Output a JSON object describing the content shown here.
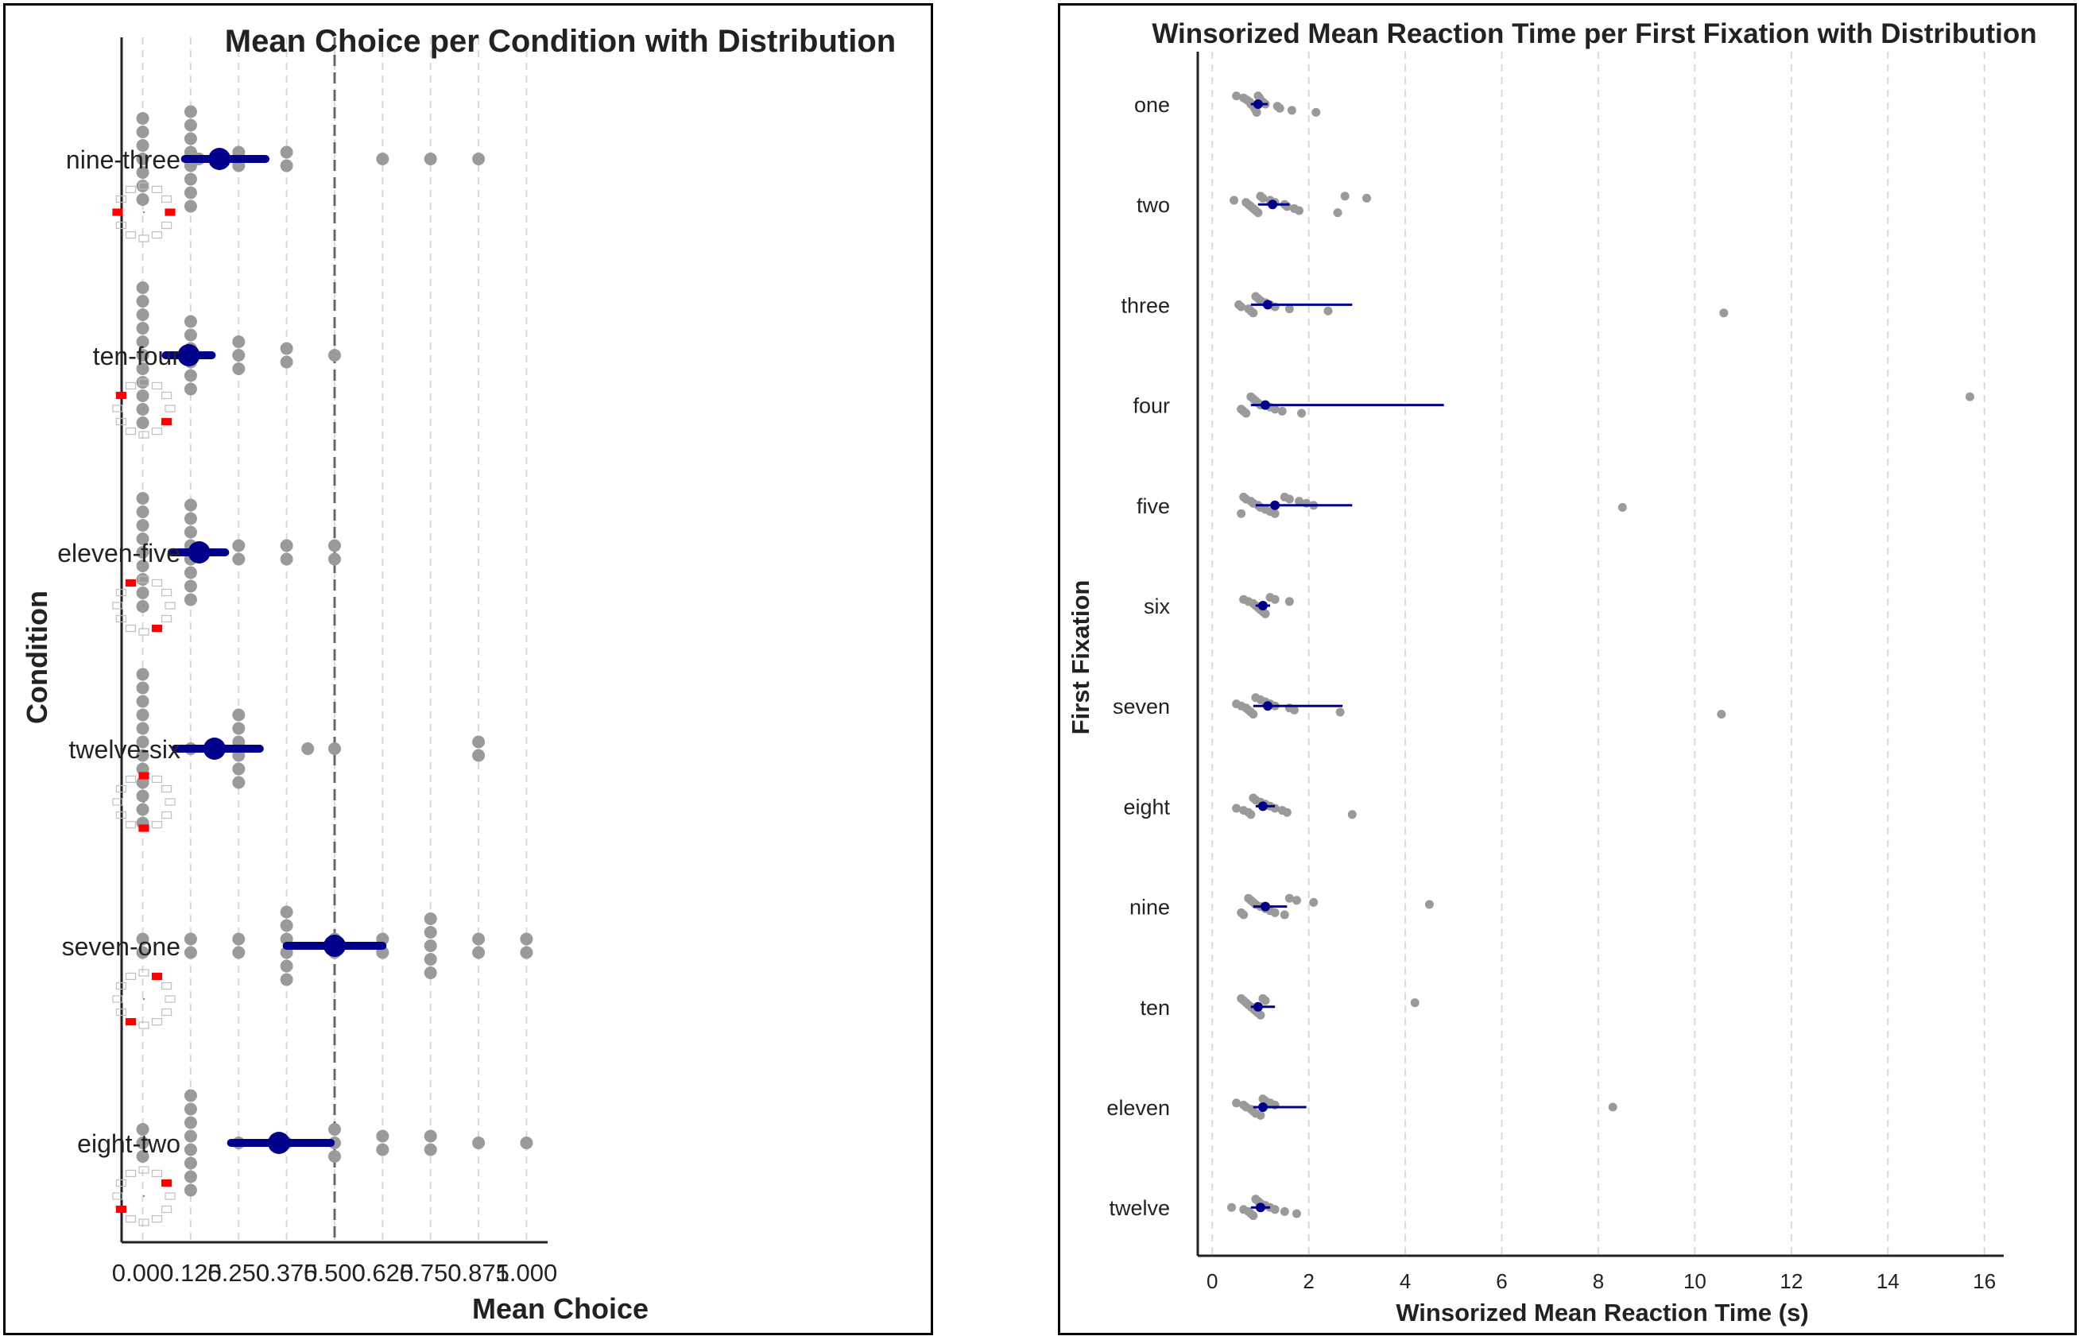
{
  "colors": {
    "point": "#9a9a9a",
    "mean": "#00008b",
    "grid": "#d9d9d9",
    "refline": "#666666",
    "icon_target": "#ff0000",
    "icon_outline": "#bfbfbf"
  },
  "chart_data": [
    {
      "type": "scatter",
      "title": "Mean Choice per Condition with Distribution",
      "xlabel": "Mean Choice",
      "ylabel": "Condition",
      "xlim": [
        -0.055,
        1.055
      ],
      "xticks": [
        0.0,
        0.125,
        0.25,
        0.375,
        0.5,
        0.625,
        0.75,
        0.875,
        1.0
      ],
      "xtick_labels": [
        "0.000",
        "0.125",
        "0.250",
        "0.375",
        "0.500",
        "0.625",
        "0.750",
        "0.875",
        "1.000"
      ],
      "grid": "vertical-dashed",
      "reference_line_x": 0.5,
      "categories": [
        "nine-three",
        "ten-four",
        "eleven-five",
        "twelve-six",
        "seven-one",
        "eight-two"
      ],
      "category_icon_targets": [
        [
          9,
          3
        ],
        [
          10,
          4
        ],
        [
          11,
          5
        ],
        [
          12,
          6
        ],
        [
          7,
          1
        ],
        [
          8,
          2
        ]
      ],
      "series": [
        {
          "category": "nine-three",
          "points": [
            {
              "x": 0.0,
              "n": 7
            },
            {
              "x": 0.125,
              "n": 8
            },
            {
              "x": 0.146,
              "n": 1
            },
            {
              "x": 0.25,
              "n": 2
            },
            {
              "x": 0.375,
              "n": 2
            },
            {
              "x": 0.625,
              "n": 1
            },
            {
              "x": 0.75,
              "n": 1
            },
            {
              "x": 0.875,
              "n": 1
            }
          ],
          "mean": 0.2,
          "ci": [
            0.11,
            0.32
          ]
        },
        {
          "category": "ten-four",
          "points": [
            {
              "x": 0.0,
              "n": 11
            },
            {
              "x": 0.125,
              "n": 6
            },
            {
              "x": 0.25,
              "n": 3
            },
            {
              "x": 0.375,
              "n": 2
            },
            {
              "x": 0.5,
              "n": 1
            }
          ],
          "mean": 0.12,
          "ci": [
            0.06,
            0.18
          ]
        },
        {
          "category": "eleven-five",
          "points": [
            {
              "x": 0.0,
              "n": 9
            },
            {
              "x": 0.125,
              "n": 8
            },
            {
              "x": 0.25,
              "n": 2
            },
            {
              "x": 0.375,
              "n": 2
            },
            {
              "x": 0.5,
              "n": 2
            }
          ],
          "mean": 0.147,
          "ci": [
            0.075,
            0.215
          ]
        },
        {
          "category": "twelve-six",
          "points": [
            {
              "x": 0.0,
              "n": 12
            },
            {
              "x": 0.125,
              "n": 1
            },
            {
              "x": 0.25,
              "n": 6
            },
            {
              "x": 0.43,
              "n": 1
            },
            {
              "x": 0.5,
              "n": 1
            },
            {
              "x": 0.875,
              "n": 2
            }
          ],
          "mean": 0.187,
          "ci": [
            0.085,
            0.305
          ]
        },
        {
          "category": "seven-one",
          "points": [
            {
              "x": 0.0,
              "n": 2
            },
            {
              "x": 0.125,
              "n": 2
            },
            {
              "x": 0.25,
              "n": 2
            },
            {
              "x": 0.375,
              "n": 6
            },
            {
              "x": 0.5,
              "n": 2
            },
            {
              "x": 0.625,
              "n": 2
            },
            {
              "x": 0.75,
              "n": 5
            },
            {
              "x": 0.875,
              "n": 2
            },
            {
              "x": 1.0,
              "n": 2
            }
          ],
          "mean": 0.5,
          "ci": [
            0.375,
            0.625
          ]
        },
        {
          "category": "eight-two",
          "points": [
            {
              "x": 0.0,
              "n": 3
            },
            {
              "x": 0.125,
              "n": 8
            },
            {
              "x": 0.25,
              "n": 1
            },
            {
              "x": 0.375,
              "n": 1
            },
            {
              "x": 0.5,
              "n": 3
            },
            {
              "x": 0.625,
              "n": 2
            },
            {
              "x": 0.75,
              "n": 2
            },
            {
              "x": 0.875,
              "n": 1
            },
            {
              "x": 1.0,
              "n": 1
            }
          ],
          "mean": 0.355,
          "ci": [
            0.23,
            0.49
          ]
        }
      ]
    },
    {
      "type": "scatter",
      "title": "Winsorized Mean Reaction Time per First Fixation with Distribution",
      "xlabel": "Winsorized Mean Reaction Time (s)",
      "ylabel": "First Fixation",
      "xlim": [
        -0.3,
        16.4
      ],
      "xticks": [
        0,
        2,
        4,
        6,
        8,
        10,
        12,
        14,
        16
      ],
      "xtick_labels": [
        "0",
        "2",
        "4",
        "6",
        "8",
        "10",
        "12",
        "14",
        "16"
      ],
      "grid": "vertical-dashed",
      "categories": [
        "one",
        "two",
        "three",
        "four",
        "five",
        "six",
        "seven",
        "eight",
        "nine",
        "ten",
        "eleven",
        "twelve"
      ],
      "series": [
        {
          "category": "one",
          "mean": 0.95,
          "ci": [
            0.8,
            1.15
          ],
          "points": [
            0.5,
            0.65,
            0.72,
            0.78,
            0.8,
            0.85,
            0.88,
            0.9,
            0.92,
            0.95,
            0.98,
            1.0,
            1.05,
            1.1,
            1.35,
            1.4,
            1.65,
            2.15
          ]
        },
        {
          "category": "two",
          "mean": 1.25,
          "ci": [
            0.95,
            1.6
          ],
          "points": [
            0.45,
            0.7,
            0.75,
            0.8,
            0.85,
            0.9,
            0.95,
            1.0,
            1.05,
            1.2,
            1.3,
            1.5,
            1.55,
            1.7,
            1.8,
            2.6,
            2.75,
            3.2
          ]
        },
        {
          "category": "three",
          "mean": 1.15,
          "ci": [
            0.8,
            2.9
          ],
          "points": [
            0.55,
            0.6,
            0.75,
            0.8,
            0.85,
            0.9,
            0.95,
            1.0,
            1.1,
            1.2,
            1.3,
            1.6,
            2.4,
            10.6
          ]
        },
        {
          "category": "four",
          "mean": 1.1,
          "ci": [
            0.8,
            4.8
          ],
          "points": [
            0.6,
            0.65,
            0.7,
            0.8,
            0.85,
            0.9,
            0.95,
            1.0,
            1.2,
            1.3,
            1.45,
            1.85,
            15.7
          ]
        },
        {
          "category": "five",
          "mean": 1.3,
          "ci": [
            0.9,
            2.9
          ],
          "points": [
            0.6,
            0.65,
            0.7,
            0.8,
            0.85,
            0.95,
            1.0,
            1.1,
            1.2,
            1.3,
            1.5,
            1.6,
            1.8,
            1.95,
            2.1,
            8.5
          ]
        },
        {
          "category": "six",
          "mean": 1.05,
          "ci": [
            0.9,
            1.2
          ],
          "points": [
            0.65,
            0.75,
            0.85,
            0.9,
            0.95,
            1.0,
            1.05,
            1.1,
            1.2,
            1.3,
            1.6
          ]
        },
        {
          "category": "seven",
          "mean": 1.15,
          "ci": [
            0.85,
            2.7
          ],
          "points": [
            0.5,
            0.6,
            0.7,
            0.75,
            0.8,
            0.85,
            0.9,
            1.0,
            1.1,
            1.2,
            1.3,
            1.6,
            1.7,
            2.65,
            10.55
          ]
        },
        {
          "category": "eight",
          "mean": 1.05,
          "ci": [
            0.9,
            1.3
          ],
          "points": [
            0.5,
            0.65,
            0.75,
            0.8,
            0.85,
            0.9,
            1.0,
            1.1,
            1.2,
            1.3,
            1.45,
            1.55,
            2.9
          ]
        },
        {
          "category": "nine",
          "mean": 1.1,
          "ci": [
            0.85,
            1.55
          ],
          "points": [
            0.6,
            0.65,
            0.75,
            0.8,
            0.85,
            0.9,
            1.0,
            1.1,
            1.2,
            1.3,
            1.5,
            1.6,
            1.75,
            2.1,
            4.5
          ]
        },
        {
          "category": "ten",
          "mean": 0.95,
          "ci": [
            0.8,
            1.3
          ],
          "points": [
            0.6,
            0.65,
            0.7,
            0.75,
            0.8,
            0.85,
            0.9,
            0.95,
            1.0,
            1.05,
            1.1,
            4.2
          ]
        },
        {
          "category": "eleven",
          "mean": 1.05,
          "ci": [
            0.85,
            1.95
          ],
          "points": [
            0.5,
            0.65,
            0.7,
            0.8,
            0.85,
            0.9,
            1.0,
            1.05,
            1.1,
            1.2,
            1.3,
            8.3
          ]
        },
        {
          "category": "twelve",
          "mean": 1.0,
          "ci": [
            0.8,
            1.2
          ],
          "points": [
            0.4,
            0.65,
            0.75,
            0.8,
            0.85,
            0.9,
            0.95,
            1.0,
            1.1,
            1.2,
            1.3,
            1.5,
            1.75
          ]
        }
      ]
    }
  ]
}
